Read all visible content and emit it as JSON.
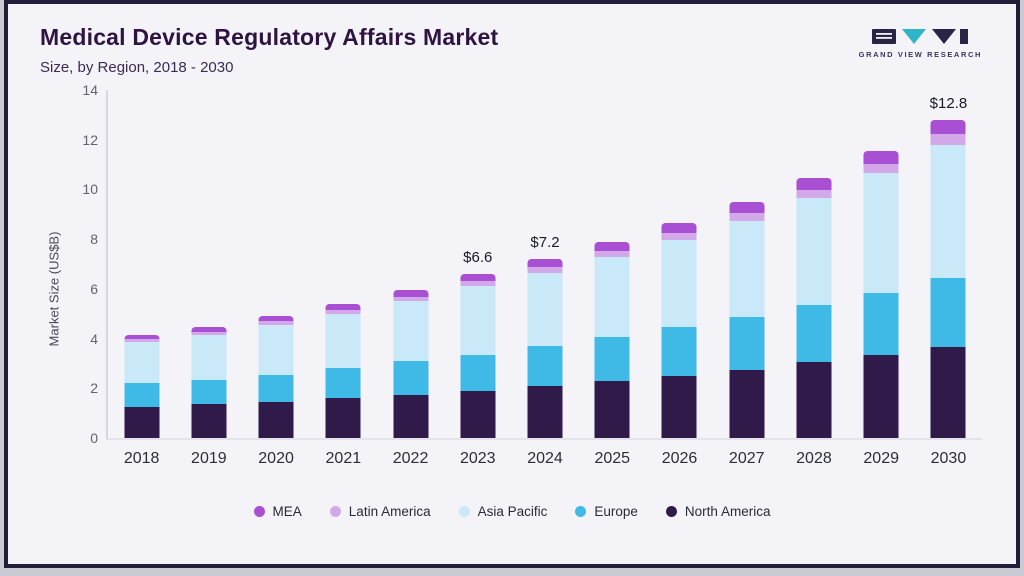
{
  "header": {
    "title": "Medical Device Regulatory Affairs Market",
    "subtitle": "Size, by Region, 2018 - 2030",
    "logo_text": "GRAND VIEW RESEARCH"
  },
  "chart_data": {
    "type": "bar",
    "stacked": true,
    "title": "Medical Device Regulatory Affairs Market Size, by Region, 2018 - 2030",
    "xlabel": "",
    "ylabel": "Market Size (US$B)",
    "ylim": [
      0,
      14
    ],
    "yticks": [
      0,
      2,
      4,
      6,
      8,
      10,
      12,
      14
    ],
    "grid": false,
    "legend_position": "bottom",
    "categories": [
      "2018",
      "2019",
      "2020",
      "2021",
      "2022",
      "2023",
      "2024",
      "2025",
      "2026",
      "2027",
      "2028",
      "2029",
      "2030"
    ],
    "series": [
      {
        "name": "North America",
        "color": "#301a4a",
        "values": [
          1.25,
          1.35,
          1.45,
          1.6,
          1.75,
          1.9,
          2.1,
          2.3,
          2.5,
          2.75,
          3.05,
          3.35,
          3.65
        ]
      },
      {
        "name": "Europe",
        "color": "#3fb9e6",
        "values": [
          0.95,
          1.0,
          1.1,
          1.2,
          1.35,
          1.45,
          1.6,
          1.75,
          1.95,
          2.1,
          2.3,
          2.5,
          2.8
        ]
      },
      {
        "name": "Asia Pacific",
        "color": "#c9e8f8",
        "values": [
          1.65,
          1.8,
          2.0,
          2.2,
          2.4,
          2.75,
          2.95,
          3.25,
          3.5,
          3.9,
          4.3,
          4.8,
          5.35
        ]
      },
      {
        "name": "Latin America",
        "color": "#d2a8e8",
        "values": [
          0.12,
          0.13,
          0.15,
          0.16,
          0.18,
          0.2,
          0.22,
          0.24,
          0.28,
          0.3,
          0.33,
          0.38,
          0.42
        ]
      },
      {
        "name": "MEA",
        "color": "#a84fd4",
        "values": [
          0.18,
          0.19,
          0.22,
          0.24,
          0.26,
          0.3,
          0.33,
          0.36,
          0.42,
          0.45,
          0.47,
          0.52,
          0.58
        ]
      }
    ],
    "totals": [
      4.15,
      4.47,
      4.92,
      5.4,
      5.94,
      6.6,
      7.2,
      7.9,
      8.65,
      9.5,
      10.45,
      11.55,
      12.8
    ],
    "annotations": {
      "2023": "$6.6",
      "2024": "$7.2",
      "2030": "$12.8"
    },
    "legend": [
      {
        "label": "MEA",
        "color": "#a84fd4"
      },
      {
        "label": "Latin America",
        "color": "#d2a8e8"
      },
      {
        "label": "Asia Pacific",
        "color": "#c9e8f8"
      },
      {
        "label": "Europe",
        "color": "#3fb9e6"
      },
      {
        "label": "North America",
        "color": "#301a4a"
      }
    ]
  }
}
